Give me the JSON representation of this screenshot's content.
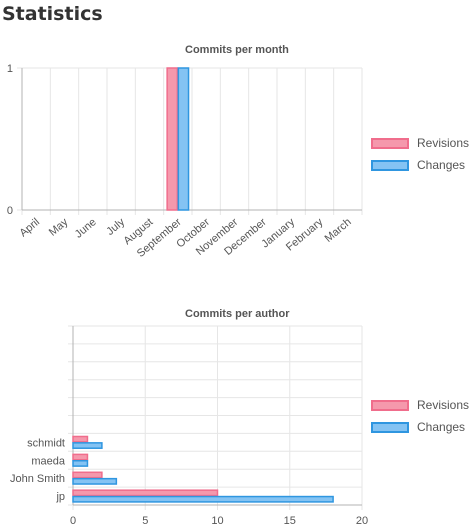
{
  "page": {
    "title": "Statistics"
  },
  "legend": {
    "revisions": "Revisions",
    "changes": "Changes"
  },
  "colors": {
    "revisions_fill": "#f598ac",
    "revisions_border": "#f06d8c",
    "changes_fill": "#84c3f3",
    "changes_border": "#2f96e0",
    "grid": "#e6e6e6",
    "axis": "#b3b3b3"
  },
  "chart_data": [
    {
      "type": "bar",
      "title": "Commits per month",
      "categories": [
        "April",
        "May",
        "June",
        "July",
        "August",
        "September",
        "October",
        "November",
        "December",
        "January",
        "February",
        "March"
      ],
      "series": [
        {
          "name": "Revisions",
          "values": [
            0,
            0,
            0,
            0,
            0,
            1,
            0,
            0,
            0,
            0,
            0,
            0
          ]
        },
        {
          "name": "Changes",
          "values": [
            0,
            0,
            0,
            0,
            0,
            1,
            0,
            0,
            0,
            0,
            0,
            0
          ]
        }
      ],
      "ylim": [
        0,
        1
      ],
      "yticks": [
        "0",
        "1"
      ],
      "grid": true,
      "legend_position": "right"
    },
    {
      "type": "bar",
      "orientation": "horizontal",
      "title": "Commits per author",
      "categories": [
        "",
        "",
        "",
        "",
        "",
        "",
        "schmidt",
        "maeda",
        "John Smith",
        "jp"
      ],
      "series": [
        {
          "name": "Revisions",
          "values": [
            0,
            0,
            0,
            0,
            0,
            0,
            1,
            1,
            2,
            10
          ]
        },
        {
          "name": "Changes",
          "values": [
            0,
            0,
            0,
            0,
            0,
            0,
            2,
            1,
            3,
            18
          ]
        }
      ],
      "xlim": [
        0,
        20
      ],
      "xticks": [
        "0",
        "5",
        "10",
        "15",
        "20"
      ],
      "grid": true,
      "legend_position": "right"
    }
  ]
}
